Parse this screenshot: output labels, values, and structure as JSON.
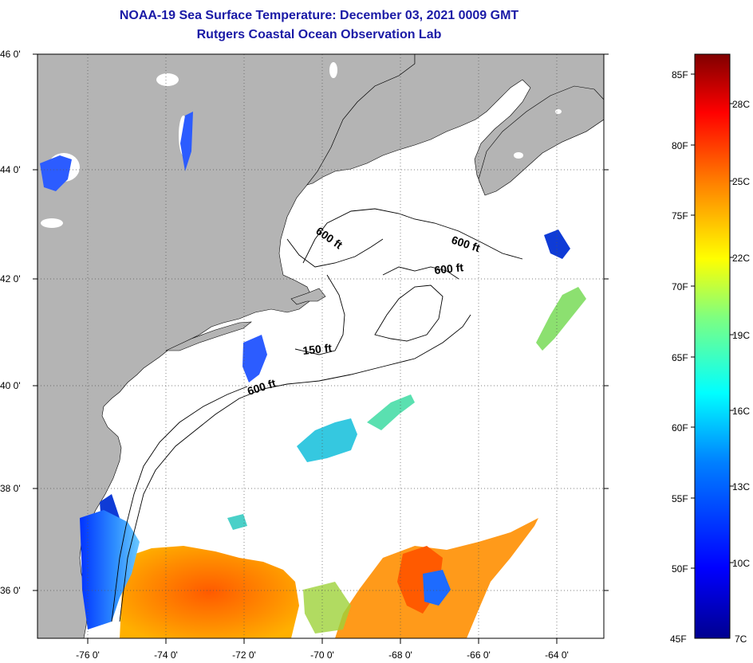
{
  "header": {
    "title": "NOAA-19 Sea Surface Temperature:  December 03, 2021 0009 GMT",
    "subtitle": "Rutgers Coastal Ocean Observation Lab"
  },
  "axes": {
    "lat_labels": [
      "46 0'",
      "44 0'",
      "42 0'",
      "40 0'",
      "38 0'",
      "36 0'"
    ],
    "lon_labels": [
      "-76 0'",
      "-74 0'",
      "-72 0'",
      "-70 0'",
      "-68 0'",
      "-66 0'",
      "-64 0'"
    ]
  },
  "contours": {
    "labels": [
      "600 ft",
      "600 ft",
      "600 ft",
      "150 ft",
      "600 ft"
    ]
  },
  "colorbar": {
    "fahrenheit_labels": [
      "85F",
      "80F",
      "75F",
      "70F",
      "65F",
      "60F",
      "55F",
      "50F",
      "45F"
    ],
    "celsius_labels": [
      "28C",
      "25C",
      "22C",
      "19C",
      "16C",
      "13C",
      "10C",
      "7C"
    ]
  },
  "colors": {
    "title": "#1a1aa6",
    "land": "#b4b4b4",
    "ocean_background": "#ffffff"
  }
}
